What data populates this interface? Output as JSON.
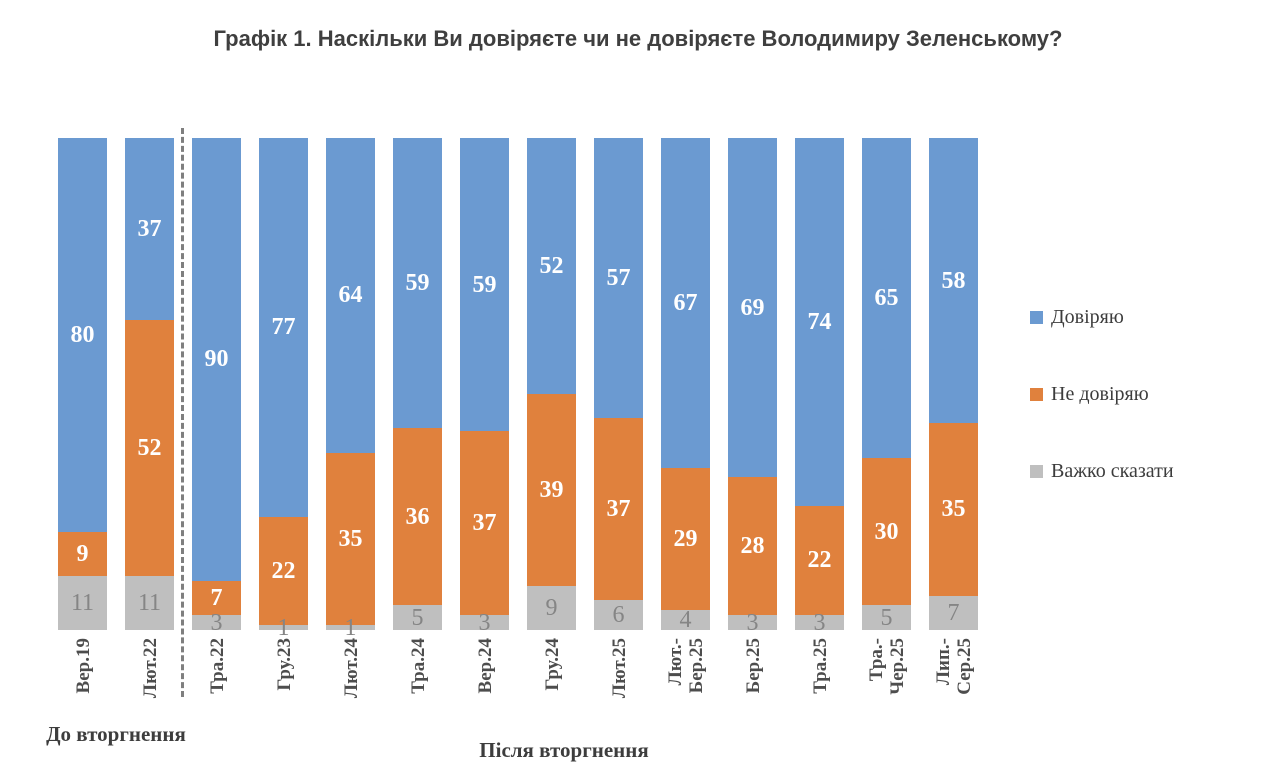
{
  "title": "Графік 1. Наскільки Ви довіряєте чи не довіряєте Володимиру Зеленському?",
  "legend": [
    {
      "label": "Довіряю",
      "color": "#6B9AD1"
    },
    {
      "label": "Не довіряю",
      "color": "#E0813D"
    },
    {
      "label": "Важко сказати",
      "color": "#BFBFBF"
    }
  ],
  "groups": {
    "before": "До вторгнення",
    "after": "Після вторгнення"
  },
  "colors": {
    "trust": "#6B9AD1",
    "distrust": "#E0813D",
    "hard_to_say": "#BFBFBF",
    "divider": "#7f7f7f",
    "muted_label": "#858585",
    "title_text": "#3f3f3f",
    "tick_text": "#4d4d4d"
  },
  "chart_data": {
    "type": "bar",
    "stacked": true,
    "percent": true,
    "title": "Графік 1. Наскільки Ви довіряєте чи не довіряєте Володимиру Зеленському?",
    "xlabel": "",
    "ylabel": "",
    "ylim": [
      0,
      100
    ],
    "grid": false,
    "legend_position": "right",
    "categories": [
      "Вер.19",
      "Лют.22",
      "Тра.22",
      "Гру.23",
      "Лют.24",
      "Тра.24",
      "Вер.24",
      "Гру.24",
      "Лют.25",
      "Лют.-Бер.25",
      "Бер.25",
      "Тра.25",
      "Тра.-Чер.25",
      "Лип.-Сер.25"
    ],
    "category_display": [
      "Вер.19",
      "Лют.22",
      "Тра.22",
      "Гру.23",
      "Лют.24",
      "Тра.24",
      "Вер.24",
      "Гру.24",
      "Лют.25",
      "Лют.-\nБер.25",
      "Бер.25",
      "Тра.25",
      "Тра.-\nЧер.25",
      "Лип.-\nСер.25"
    ],
    "series": [
      {
        "name": "Довіряю",
        "color": "#6B9AD1",
        "values": [
          80,
          37,
          90,
          77,
          64,
          59,
          59,
          52,
          57,
          67,
          69,
          74,
          65,
          58
        ]
      },
      {
        "name": "Не довіряю",
        "color": "#E0813D",
        "values": [
          9,
          52,
          7,
          22,
          35,
          36,
          37,
          39,
          37,
          29,
          28,
          22,
          30,
          35
        ]
      },
      {
        "name": "Важко сказати",
        "color": "#BFBFBF",
        "values": [
          11,
          11,
          3,
          1,
          1,
          5,
          3,
          9,
          6,
          4,
          3,
          3,
          5,
          7
        ]
      }
    ],
    "annotations": {
      "divider_after_category": "Лют.22",
      "group_before_label": "До вторгнення",
      "group_before_categories": [
        "Вер.19",
        "Лют.22"
      ],
      "group_after_label": "Після вторгнення",
      "group_after_categories": [
        "Тра.22",
        "Гру.23",
        "Лют.24",
        "Тра.24",
        "Вер.24",
        "Гру.24",
        "Лют.25",
        "Лют.-Бер.25",
        "Бер.25",
        "Тра.25",
        "Тра.-Чер.25",
        "Лип.-Сер.25"
      ]
    }
  }
}
